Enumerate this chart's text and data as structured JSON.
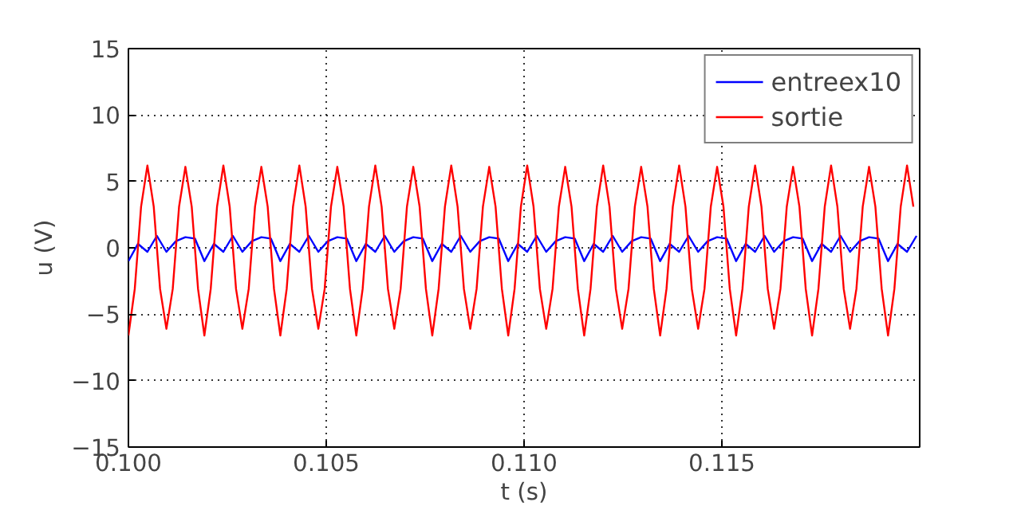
{
  "chart_data": {
    "type": "line",
    "xlabel": "t (s)",
    "ylabel": "u (V)",
    "xlim": [
      0.1,
      0.12
    ],
    "xticks": [
      {
        "value": 0.1,
        "label": "0.100"
      },
      {
        "value": 0.105,
        "label": "0.105"
      },
      {
        "value": 0.11,
        "label": "0.110"
      },
      {
        "value": 0.115,
        "label": "0.115"
      }
    ],
    "ylim": [
      -15,
      15
    ],
    "yticks": [
      {
        "value": -15,
        "label": "−15"
      },
      {
        "value": -10,
        "label": "−10"
      },
      {
        "value": -5,
        "label": "−5"
      },
      0,
      5,
      10,
      15
    ],
    "grid": true,
    "legend": "top right",
    "marker": "none",
    "line_style": "solid",
    "series": [
      {
        "name": "entreex10",
        "color": "#0000ff",
        "x": [
          0.1,
          0.10024,
          0.10048,
          0.10072,
          0.10096,
          0.1012,
          0.10144,
          0.10168,
          0.10192,
          0.10216,
          0.1024,
          0.10264,
          0.10288,
          0.10312,
          0.10336,
          0.1036,
          0.10384,
          0.10408,
          0.10432,
          0.10456,
          0.1048,
          0.10504,
          0.10528,
          0.10552,
          0.10576,
          0.106,
          0.10624,
          0.10648,
          0.10672,
          0.10696,
          0.1072,
          0.10744,
          0.10768,
          0.10792,
          0.10816,
          0.1084,
          0.10864,
          0.10888,
          0.10912,
          0.10936,
          0.1096,
          0.10984,
          0.11008,
          0.11032,
          0.11056,
          0.1108,
          0.11104,
          0.11128,
          0.11152,
          0.11176,
          0.112,
          0.11224,
          0.11248,
          0.11272,
          0.11296,
          0.1132,
          0.11344,
          0.11368,
          0.11392,
          0.11416,
          0.1144,
          0.11464,
          0.11488,
          0.11512,
          0.11536,
          0.1156,
          0.11584,
          0.11608,
          0.11632,
          0.11656,
          0.1168,
          0.11704,
          0.11728,
          0.11752,
          0.11776,
          0.118,
          0.11824,
          0.11848,
          0.11872,
          0.11896,
          0.1192,
          0.11944,
          0.11968,
          0.11992
        ],
        "values": [
          -1.0,
          0.3,
          -0.3,
          0.9,
          -0.3,
          0.5,
          0.8,
          0.7,
          -1.0,
          0.3,
          -0.3,
          0.9,
          -0.3,
          0.5,
          0.8,
          0.7,
          -1.0,
          0.3,
          -0.3,
          0.9,
          -0.3,
          0.5,
          0.8,
          0.7,
          -1.0,
          0.3,
          -0.3,
          0.9,
          -0.3,
          0.5,
          0.8,
          0.7,
          -1.0,
          0.3,
          -0.3,
          0.9,
          -0.3,
          0.5,
          0.8,
          0.7,
          -1.0,
          0.3,
          -0.3,
          0.9,
          -0.3,
          0.5,
          0.8,
          0.7,
          -1.0,
          0.3,
          -0.3,
          0.9,
          -0.3,
          0.5,
          0.8,
          0.7,
          -1.0,
          0.3,
          -0.3,
          0.9,
          -0.3,
          0.5,
          0.8,
          0.7,
          -1.0,
          0.3,
          -0.3,
          0.9,
          -0.3,
          0.5,
          0.8,
          0.7,
          -1.0,
          0.3,
          -0.3,
          0.9,
          -0.3,
          0.5,
          0.8,
          0.7,
          -1.0,
          0.3,
          -0.3,
          0.9
        ]
      },
      {
        "name": "sortie",
        "color": "#ff0000",
        "x": [
          0.1,
          0.10016,
          0.10032,
          0.10048,
          0.10064,
          0.1008,
          0.10096,
          0.10112,
          0.10128,
          0.10144,
          0.1016,
          0.10176,
          0.10192,
          0.10208,
          0.10224,
          0.1024,
          0.10256,
          0.10272,
          0.10288,
          0.10304,
          0.1032,
          0.10336,
          0.10352,
          0.10368,
          0.10384,
          0.104,
          0.10416,
          0.10432,
          0.10448,
          0.10464,
          0.1048,
          0.10496,
          0.10512,
          0.10528,
          0.10544,
          0.1056,
          0.10576,
          0.10592,
          0.10608,
          0.10624,
          0.1064,
          0.10656,
          0.10672,
          0.10688,
          0.10704,
          0.1072,
          0.10736,
          0.10752,
          0.10768,
          0.10784,
          0.108,
          0.10816,
          0.10832,
          0.10848,
          0.10864,
          0.1088,
          0.10896,
          0.10912,
          0.10928,
          0.10944,
          0.1096,
          0.10976,
          0.10992,
          0.11008,
          0.11024,
          0.1104,
          0.11056,
          0.11072,
          0.11088,
          0.11104,
          0.1112,
          0.11136,
          0.11152,
          0.11168,
          0.11184,
          0.112,
          0.11216,
          0.11232,
          0.11248,
          0.11264,
          0.1128,
          0.11296,
          0.11312,
          0.11328,
          0.11344,
          0.1136,
          0.11376,
          0.11392,
          0.11408,
          0.11424,
          0.1144,
          0.11456,
          0.11472,
          0.11488,
          0.11504,
          0.1152,
          0.11536,
          0.11552,
          0.11568,
          0.11584,
          0.116,
          0.11616,
          0.11632,
          0.11648,
          0.11664,
          0.1168,
          0.11696,
          0.11712,
          0.11728,
          0.11744,
          0.1176,
          0.11776,
          0.11792,
          0.11808,
          0.11824,
          0.1184,
          0.11856,
          0.11872,
          0.11888,
          0.11904,
          0.1192,
          0.11936,
          0.11952,
          0.11968,
          0.11984
        ],
        "values": [
          -6.6,
          -3.1,
          3.1,
          6.2,
          3.1,
          -3.1,
          -6.1,
          -3.1,
          3.1,
          6.1,
          3.1,
          -3.1,
          -6.6,
          -3.1,
          3.1,
          6.2,
          3.1,
          -3.1,
          -6.1,
          -3.1,
          3.1,
          6.1,
          3.1,
          -3.1,
          -6.6,
          -3.1,
          3.1,
          6.2,
          3.1,
          -3.1,
          -6.1,
          -3.1,
          3.1,
          6.1,
          3.1,
          -3.1,
          -6.6,
          -3.1,
          3.1,
          6.2,
          3.1,
          -3.1,
          -6.1,
          -3.1,
          3.1,
          6.1,
          3.1,
          -3.1,
          -6.6,
          -3.1,
          3.1,
          6.2,
          3.1,
          -3.1,
          -6.1,
          -3.1,
          3.1,
          6.1,
          3.1,
          -3.1,
          -6.6,
          -3.1,
          3.1,
          6.2,
          3.1,
          -3.1,
          -6.1,
          -3.1,
          3.1,
          6.1,
          3.1,
          -3.1,
          -6.6,
          -3.1,
          3.1,
          6.2,
          3.1,
          -3.1,
          -6.1,
          -3.1,
          3.1,
          6.1,
          3.1,
          -3.1,
          -6.6,
          -3.1,
          3.1,
          6.2,
          3.1,
          -3.1,
          -6.1,
          -3.1,
          3.1,
          6.1,
          3.1,
          -3.1,
          -6.6,
          -3.1,
          3.1,
          6.2,
          3.1,
          -3.1,
          -6.1,
          -3.1,
          3.1,
          6.1,
          3.1,
          -3.1,
          -6.6,
          -3.1,
          3.1,
          6.2,
          3.1,
          -3.1,
          -6.1,
          -3.1,
          3.1,
          6.1,
          3.1,
          -3.1,
          -6.6,
          -3.1,
          3.1,
          6.2,
          3.1
        ]
      }
    ]
  }
}
